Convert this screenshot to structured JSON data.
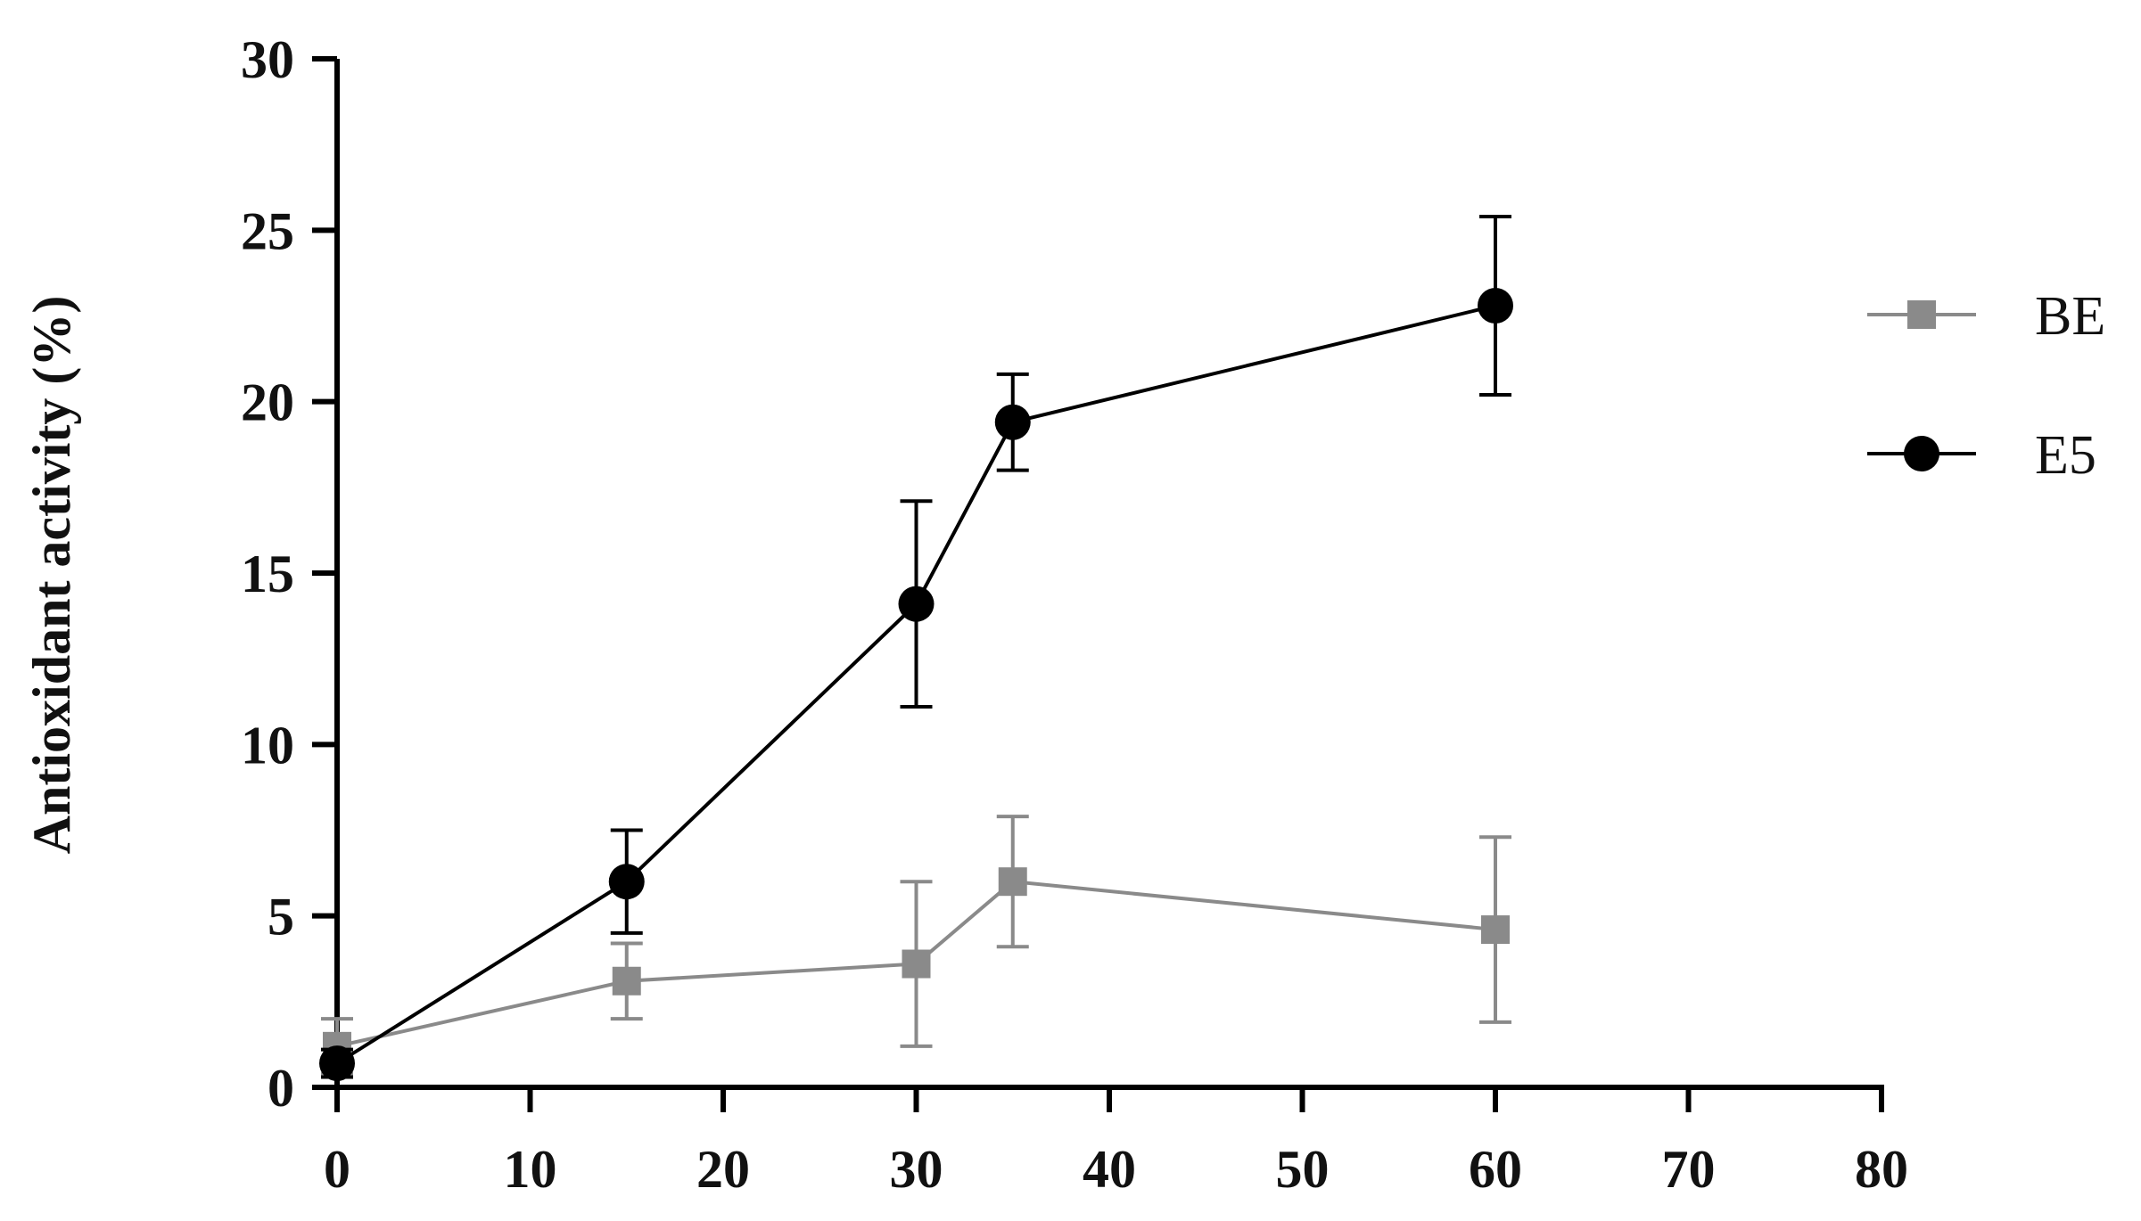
{
  "chart_data": {
    "type": "line",
    "title": "",
    "xlabel": "",
    "ylabel": "Antioxidant activity (%)",
    "xlim": [
      0,
      80
    ],
    "ylim": [
      0,
      30
    ],
    "x_ticks": [
      "0",
      "10",
      "20",
      "30",
      "40",
      "50",
      "60",
      "70",
      "80"
    ],
    "y_ticks": [
      "0",
      "5",
      "10",
      "15",
      "20",
      "25",
      "30"
    ],
    "grid": false,
    "legend_position": "right",
    "series": [
      {
        "name": "BE",
        "color": "#8a8a8a",
        "marker": "square",
        "x": [
          0,
          15,
          30,
          35,
          60
        ],
        "values": [
          1.2,
          3.1,
          3.6,
          6.0,
          4.6
        ],
        "error": [
          0.8,
          1.1,
          2.4,
          1.9,
          2.7
        ]
      },
      {
        "name": "E5",
        "color": "#000000",
        "marker": "circle",
        "x": [
          0,
          15,
          30,
          35,
          60
        ],
        "values": [
          0.7,
          6.0,
          14.1,
          19.4,
          22.8
        ],
        "error": [
          0.4,
          1.5,
          3.0,
          1.4,
          2.6
        ]
      }
    ]
  }
}
